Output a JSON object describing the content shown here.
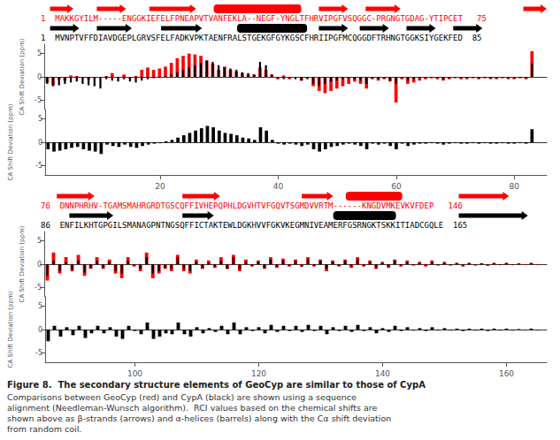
{
  "chart_data": [
    {
      "type": "bar",
      "ylabel": "CA Shift Deviation (ppm)",
      "x": [
        1,
        2,
        3,
        4,
        5,
        6,
        7,
        8,
        9,
        10,
        11,
        12,
        13,
        14,
        15,
        16,
        17,
        18,
        19,
        20,
        21,
        22,
        23,
        24,
        25,
        26,
        27,
        28,
        29,
        30,
        31,
        32,
        33,
        34,
        35,
        36,
        37,
        38,
        39,
        40,
        41,
        42,
        43,
        44,
        45,
        46,
        47,
        48,
        49,
        50,
        51,
        52,
        53,
        54,
        55,
        56,
        57,
        58,
        59,
        60,
        61,
        62,
        63,
        64,
        65,
        66,
        67,
        68,
        69,
        70,
        71,
        72,
        73,
        74,
        75,
        76,
        77,
        78,
        79,
        80,
        81,
        82,
        83
      ],
      "xlim": [
        0.5,
        85.5
      ],
      "ylim": [
        -7,
        7
      ],
      "yticks": [
        -5,
        0,
        5
      ],
      "grid": false,
      "tick_labels": "y",
      "series": [
        {
          "color": "red",
          "values": [
            -1.2,
            -1.8,
            -0.5,
            -0.8,
            0.3,
            0.2,
            -0.3,
            -0.5,
            -0.3,
            -0.2,
            0.2,
            0.8,
            -0.2,
            0.5,
            -0.3,
            0.2,
            1.5,
            2.0,
            1.5,
            1.8,
            2.2,
            3.0,
            4.0,
            4.5,
            5.0,
            4.8,
            4.5,
            3.5,
            2.8,
            1.5,
            2.2,
            1.5,
            1.2,
            0.8,
            0.5,
            0.5,
            2.0,
            1.5,
            0.5,
            -0.5,
            0.3,
            -0.5,
            -0.2,
            -0.8,
            -0.3,
            -2.0,
            -3.0,
            -3.5,
            -3.0,
            -2.5,
            -2.0,
            -1.5,
            -1.0,
            -1.5,
            -2.5,
            -0.5,
            -0.8,
            -0.5,
            -1.0,
            -5.5,
            -0.5,
            -1.5,
            -1.2,
            -0.8,
            -0.5,
            -0.3,
            -0.5,
            -0.8,
            -0.5,
            -0.3,
            -0.5,
            -0.5,
            -0.3,
            -0.5,
            -0.3,
            -0.5,
            -0.5,
            -0.3,
            -0.5,
            -0.5,
            -0.3,
            -0.5,
            5.5
          ]
        },
        {
          "color": "black",
          "values": [
            -1.5,
            -2.0,
            -1.8,
            -1.5,
            -1.2,
            -1.0,
            -1.5,
            -1.8,
            -2.0,
            -2.5,
            -0.5,
            -0.8,
            -1.0,
            -0.5,
            -1.0,
            -1.2,
            -0.8,
            -0.5,
            -0.3,
            -0.2,
            0.2,
            0.5,
            1.0,
            1.5,
            2.0,
            2.5,
            3.0,
            3.5,
            3.2,
            2.5,
            2.0,
            1.8,
            1.5,
            1.0,
            0.8,
            0.5,
            3.2,
            2.5,
            0.5,
            -0.3,
            -0.5,
            -0.3,
            -0.5,
            -0.8,
            -0.5,
            -1.5,
            -2.0,
            -1.5,
            -1.0,
            -0.8,
            -0.5,
            -0.3,
            -0.5,
            -0.8,
            -1.5,
            -0.3,
            -0.5,
            -0.3,
            -0.8,
            -1.5,
            -0.3,
            -0.8,
            -0.5,
            -0.3,
            -0.3,
            -0.2,
            -0.3,
            -0.5,
            -0.3,
            -0.2,
            -0.3,
            -0.3,
            -0.2,
            -0.3,
            -0.2,
            -0.3,
            -0.3,
            -0.2,
            -0.3,
            -0.3,
            -0.2,
            -0.3,
            2.8
          ]
        }
      ],
      "sequences": [
        {
          "color": "red",
          "text": "1  MAKKGYILM-----ENGGKIEFELFPNEAPVTVANFEKLA--NEGF-YNGLTFHRVIPGFVSQGGC-PRGNGTGDAG-YTIPCET   75"
        },
        {
          "color": "black",
          "text": "1  MVNPTVFFDIAVDGEPLGRVSFELFADKVPKTAENFRALSTGEKGFGYKGSCFHRIIPGFMCQGGDFTRHNGTGGKSIYGEKFED  85"
        }
      ],
      "structure": {
        "xlim": [
          0,
          86
        ],
        "rows": [
          {
            "color": "red",
            "strands": [
              [
                1,
                5
              ],
              [
                9,
                14
              ],
              [
                18,
                26
              ],
              [
                47,
                52
              ],
              [
                55,
                61
              ],
              [
                82,
                86
              ]
            ],
            "helices": [
              [
                29,
                44
              ]
            ]
          },
          {
            "color": "black",
            "strands": [
              [
                1,
                6
              ],
              [
                9,
                15
              ],
              [
                20,
                27
              ],
              [
                47,
                52
              ],
              [
                54,
                59
              ],
              [
                62,
                67
              ],
              [
                70,
                75
              ]
            ],
            "helices": [
              [
                33,
                45
              ]
            ]
          }
        ]
      }
    },
    {
      "type": "bar",
      "ylabel": "CA Shift Deviation (ppm)",
      "x": [
        1,
        2,
        3,
        4,
        5,
        6,
        7,
        8,
        9,
        10,
        11,
        12,
        13,
        14,
        15,
        16,
        17,
        18,
        19,
        20,
        21,
        22,
        23,
        24,
        25,
        26,
        27,
        28,
        29,
        30,
        31,
        32,
        33,
        34,
        35,
        36,
        37,
        38,
        39,
        40,
        41,
        42,
        43,
        44,
        45,
        46,
        47,
        48,
        49,
        50,
        51,
        52,
        53,
        54,
        55,
        56,
        57,
        58,
        59,
        60,
        61,
        62,
        63,
        64,
        65,
        66,
        67,
        68,
        69,
        70,
        71,
        72,
        73,
        74,
        75,
        76,
        77,
        78,
        79,
        80,
        81,
        82,
        83
      ],
      "xlim": [
        0.5,
        85.5
      ],
      "xticks": [
        20,
        40,
        60,
        80
      ],
      "ylim": [
        -7,
        7
      ],
      "yticks": [
        -5,
        0,
        5
      ],
      "grid": false,
      "series": [
        {
          "color": "black",
          "values": [
            -1.5,
            -2.0,
            -1.8,
            -1.5,
            -1.2,
            -1.0,
            -1.5,
            -1.8,
            -2.0,
            -2.5,
            -0.5,
            -0.8,
            -1.0,
            -0.5,
            -1.0,
            -1.2,
            -0.8,
            -0.5,
            -0.3,
            -0.2,
            0.2,
            0.5,
            1.0,
            1.5,
            2.0,
            2.5,
            3.0,
            3.5,
            3.2,
            2.5,
            2.0,
            1.8,
            1.5,
            1.0,
            0.8,
            0.5,
            3.2,
            2.5,
            0.5,
            -0.3,
            -0.5,
            -0.3,
            -0.5,
            -0.8,
            -0.5,
            -1.5,
            -2.0,
            -1.5,
            -1.0,
            -0.8,
            -0.5,
            -0.3,
            -0.5,
            -0.8,
            -1.5,
            -0.3,
            -0.5,
            -0.3,
            -0.8,
            -1.5,
            -0.3,
            -0.8,
            -0.5,
            -0.3,
            -0.3,
            -0.2,
            -0.3,
            -0.5,
            -0.3,
            -0.2,
            -0.3,
            -0.3,
            -0.2,
            -0.3,
            -0.2,
            -0.3,
            -0.3,
            -0.2,
            -0.3,
            -0.3,
            -0.2,
            -0.3,
            2.8
          ]
        }
      ]
    },
    {
      "type": "bar",
      "ylabel": "CA Shift Deviation (ppm)",
      "x": [
        86,
        87,
        88,
        89,
        90,
        91,
        92,
        93,
        94,
        95,
        96,
        97,
        98,
        99,
        100,
        101,
        102,
        103,
        104,
        105,
        106,
        107,
        108,
        109,
        110,
        111,
        112,
        113,
        114,
        115,
        116,
        117,
        118,
        119,
        120,
        121,
        122,
        123,
        124,
        125,
        126,
        127,
        128,
        129,
        130,
        131,
        132,
        133,
        134,
        135,
        136,
        137,
        138,
        139,
        140,
        141,
        142,
        143,
        144,
        145,
        146,
        147,
        148,
        149,
        150,
        151,
        152,
        153,
        154,
        155,
        156,
        157,
        158,
        159,
        160,
        161,
        162,
        163,
        164,
        165
      ],
      "xlim": [
        85.5,
        166.5
      ],
      "ylim": [
        -7,
        7
      ],
      "yticks": [
        -5,
        0,
        5
      ],
      "grid": false,
      "tick_labels": "y",
      "series": [
        {
          "color": "red",
          "values": [
            -3.5,
            2.5,
            -2.0,
            1.5,
            -1.5,
            2.0,
            -2.5,
            -1.0,
            1.5,
            -1.0,
            1.0,
            -2.0,
            -3.0,
            1.5,
            -0.5,
            -1.5,
            2.5,
            -3.0,
            -2.0,
            -1.0,
            -1.5,
            2.0,
            -1.5,
            -2.0,
            1.0,
            -1.0,
            0.8,
            -0.8,
            1.5,
            -1.0,
            2.0,
            -1.5,
            1.0,
            -0.5,
            0.8,
            -1.0,
            1.5,
            -0.8,
            1.2,
            -0.5,
            1.0,
            -0.5,
            1.5,
            -0.5,
            1.0,
            -1.5,
            0.8,
            -0.5,
            1.0,
            -0.8,
            1.5,
            -0.5,
            0.8,
            -1.0,
            0.5,
            -0.8,
            1.0,
            -0.5,
            0.8,
            -0.3,
            0.5,
            -0.5,
            0.8,
            -0.3,
            0.5,
            -0.3,
            0.3,
            -0.5,
            0.3,
            -0.3,
            0.2,
            -0.3,
            0.3,
            -0.2,
            0.3,
            -0.2,
            0.2,
            -0.2,
            0.3,
            -0.2
          ]
        },
        {
          "color": "black",
          "values": [
            -2.5,
            0.8,
            -1.5,
            0.5,
            -1.2,
            0.8,
            -1.8,
            -0.8,
            0.8,
            -0.8,
            0.5,
            -1.5,
            -2.0,
            0.8,
            -0.3,
            -1.0,
            1.5,
            -2.0,
            -1.5,
            -0.8,
            -1.0,
            1.5,
            -1.0,
            -1.5,
            0.5,
            -0.8,
            0.3,
            -0.5,
            0.8,
            -1.0,
            1.5,
            -1.0,
            0.5,
            -0.3,
            0.5,
            -0.8,
            1.0,
            -0.5,
            0.8,
            -0.3,
            0.8,
            -0.5,
            1.0,
            -0.3,
            0.8,
            -1.0,
            0.5,
            -0.3,
            0.8,
            -0.5,
            1.0,
            -0.3,
            0.5,
            -0.8,
            0.3,
            -0.5,
            0.8,
            -0.3,
            0.5,
            -0.2,
            0.3,
            -0.3,
            0.5,
            -0.2,
            0.3,
            -0.2,
            0.2,
            -0.3,
            0.2,
            -0.2,
            0.2,
            -0.3,
            0.2,
            -0.2,
            0.2,
            -0.2,
            0.1,
            -0.1,
            0.2,
            -0.1
          ]
        }
      ],
      "sequences": [
        {
          "color": "red",
          "text": "76  DNNPHRHV-TGAMSMAHRGRDTGSCQFFIVHEPQPHLDGVHTVFGQVTSGMDVVRTM------KNGDVMKEVKVFDEP   146"
        },
        {
          "color": "black",
          "text": "86  ENFILKHTGPGILSMANAGPNTNGSQFFICTAKTEWLDGKHVVFGKVKEGMNIVEAMERFGSRNGKTSKKITIADCGQLE  165"
        }
      ],
      "structure": {
        "xlim": [
          86,
          166
        ],
        "rows": [
          {
            "color": "red",
            "strands": [
              [
                88,
                94
              ],
              [
                108,
                114
              ],
              [
                127,
                132
              ],
              [
                152,
                160
              ]
            ],
            "helices": [
              [
                134,
                143
              ]
            ]
          },
          {
            "color": "black",
            "strands": [
              [
                90,
                97
              ],
              [
                108,
                113
              ],
              [
                152,
                163
              ]
            ],
            "helices": [
              [
                132,
                142
              ]
            ]
          }
        ]
      }
    },
    {
      "type": "bar",
      "title": "Figure 8.  The secondary structure elements of GeoCyp are similar to those of CypA",
      "subtitle": "Comparisons between GeoCyp (red) and CypA (black) are shown using a sequence\nalignment (Needleman-Wunsch algorithm).  RCI values based on the chemical shifts are\nshown above as β-strands (arrows) and α-helices (barrels) along with the Cα shift deviation\nfrom random coil.",
      "ylabel": "CA Shift Deviation (ppm)",
      "x": [
        86,
        87,
        88,
        89,
        90,
        91,
        92,
        93,
        94,
        95,
        96,
        97,
        98,
        99,
        100,
        101,
        102,
        103,
        104,
        105,
        106,
        107,
        108,
        109,
        110,
        111,
        112,
        113,
        114,
        115,
        116,
        117,
        118,
        119,
        120,
        121,
        122,
        123,
        124,
        125,
        126,
        127,
        128,
        129,
        130,
        131,
        132,
        133,
        134,
        135,
        136,
        137,
        138,
        139,
        140,
        141,
        142,
        143,
        144,
        145,
        146,
        147,
        148,
        149,
        150,
        151,
        152,
        153,
        154,
        155,
        156,
        157,
        158,
        159,
        160,
        161,
        162,
        163,
        164,
        165
      ],
      "xlim": [
        85.5,
        166.5
      ],
      "xticks": [
        100,
        120,
        140,
        160
      ],
      "ylim": [
        -7,
        7
      ],
      "yticks": [
        -5,
        0,
        5
      ],
      "grid": false,
      "series": [
        {
          "color": "black",
          "values": [
            -2.5,
            0.8,
            -1.5,
            0.5,
            -1.2,
            0.8,
            -1.8,
            -0.8,
            0.8,
            -0.8,
            0.5,
            -1.5,
            -2.0,
            0.8,
            -0.3,
            -1.0,
            1.5,
            -2.0,
            -1.5,
            -0.8,
            -1.0,
            1.5,
            -1.0,
            -1.5,
            0.5,
            -0.8,
            0.3,
            -0.5,
            0.8,
            -1.0,
            1.5,
            -1.0,
            0.5,
            -0.3,
            0.5,
            -0.8,
            1.0,
            -0.5,
            0.8,
            -0.3,
            0.8,
            -0.5,
            1.0,
            -0.3,
            0.8,
            -1.0,
            0.5,
            -0.3,
            0.8,
            -0.5,
            1.0,
            -0.3,
            0.5,
            -0.8,
            0.3,
            -0.5,
            0.8,
            -0.3,
            0.5,
            -0.2,
            0.3,
            -0.3,
            0.5,
            -0.2,
            0.3,
            -0.2,
            0.2,
            -0.3,
            0.2,
            -0.2,
            0.2,
            -0.3,
            0.2,
            -0.2,
            0.2,
            -0.2,
            0.1,
            -0.1,
            0.2,
            -0.1
          ]
        }
      ]
    }
  ]
}
